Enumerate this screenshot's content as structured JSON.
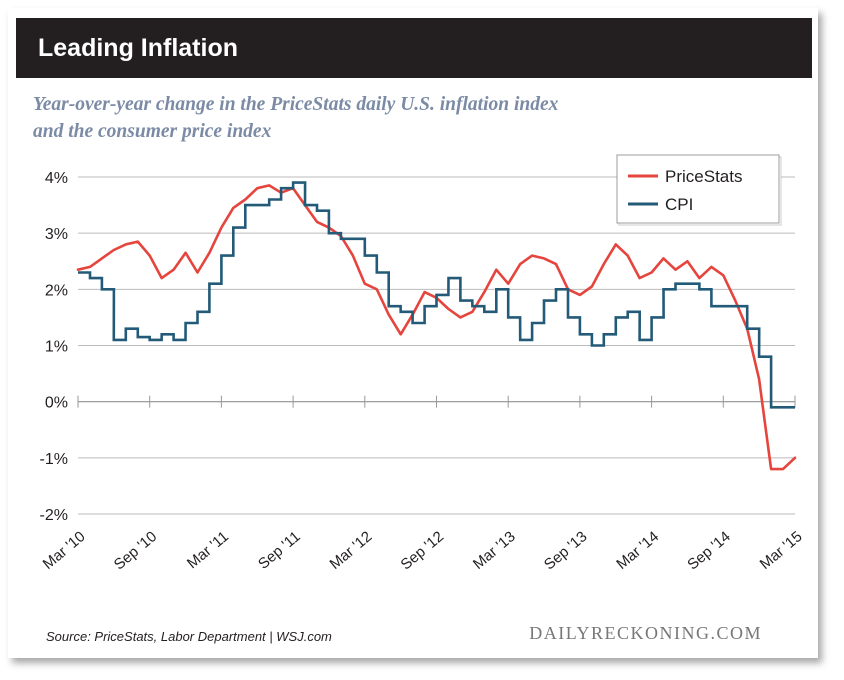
{
  "header": {
    "title": "Leading Inflation"
  },
  "subtitle": {
    "line1": "Year-over-year change in the PriceStats daily U.S. inflation index",
    "line2": "and the consumer price index"
  },
  "footer": {
    "source": "Source: PriceStats, Labor Department | WSJ.com",
    "brand": "DAILYRECKONING.COM"
  },
  "colors": {
    "header_bg": "#231f20",
    "pricestats": "#e5453d",
    "cpi": "#235a78",
    "grid": "#bbbbbb"
  },
  "chart_data": {
    "type": "line",
    "title": "Leading Inflation",
    "subtitle": "Year-over-year change in the PriceStats daily U.S. inflation index and the consumer price index",
    "ylim": [
      -2,
      4
    ],
    "yticks": [
      4,
      3,
      2,
      1,
      0,
      -1,
      -2
    ],
    "ytick_labels": [
      "4%",
      "3%",
      "2%",
      "1%",
      "0%",
      "-1%",
      "-2%"
    ],
    "xlim": [
      "2010-03",
      "2015-03"
    ],
    "xticks": [
      "Mar '10",
      "Sep '10",
      "Mar '11",
      "Sep '11",
      "Mar '12",
      "Sep '12",
      "Mar '13",
      "Sep '13",
      "Mar '14",
      "Sep '14",
      "Mar '15"
    ],
    "grid": "horizontal",
    "legend_position": "top-right",
    "series": [
      {
        "name": "PriceStats",
        "x": [
          "2010-03",
          "2010-04",
          "2010-05",
          "2010-06",
          "2010-07",
          "2010-08",
          "2010-09",
          "2010-10",
          "2010-11",
          "2010-12",
          "2011-01",
          "2011-02",
          "2011-03",
          "2011-04",
          "2011-05",
          "2011-06",
          "2011-07",
          "2011-08",
          "2011-09",
          "2011-10",
          "2011-11",
          "2011-12",
          "2012-01",
          "2012-02",
          "2012-03",
          "2012-04",
          "2012-05",
          "2012-06",
          "2012-07",
          "2012-08",
          "2012-09",
          "2012-10",
          "2012-11",
          "2012-12",
          "2013-01",
          "2013-02",
          "2013-03",
          "2013-04",
          "2013-05",
          "2013-06",
          "2013-07",
          "2013-08",
          "2013-09",
          "2013-10",
          "2013-11",
          "2013-12",
          "2014-01",
          "2014-02",
          "2014-03",
          "2014-04",
          "2014-05",
          "2014-06",
          "2014-07",
          "2014-08",
          "2014-09",
          "2014-10",
          "2014-11",
          "2014-12",
          "2015-01",
          "2015-02",
          "2015-03"
        ],
        "values": [
          2.35,
          2.4,
          2.55,
          2.7,
          2.8,
          2.85,
          2.6,
          2.2,
          2.35,
          2.65,
          2.3,
          2.65,
          3.1,
          3.45,
          3.6,
          3.8,
          3.85,
          3.72,
          3.8,
          3.5,
          3.2,
          3.1,
          2.95,
          2.6,
          2.1,
          2.0,
          1.55,
          1.2,
          1.55,
          1.95,
          1.85,
          1.65,
          1.5,
          1.6,
          1.95,
          2.35,
          2.1,
          2.45,
          2.6,
          2.55,
          2.45,
          2.0,
          1.9,
          2.05,
          2.45,
          2.8,
          2.6,
          2.2,
          2.3,
          2.55,
          2.35,
          2.5,
          2.2,
          2.4,
          2.25,
          1.8,
          1.3,
          0.4,
          -1.2,
          -1.2,
          -1.0
        ]
      },
      {
        "name": "CPI",
        "x": [
          "2010-03",
          "2010-04",
          "2010-05",
          "2010-06",
          "2010-07",
          "2010-08",
          "2010-09",
          "2010-10",
          "2010-11",
          "2010-12",
          "2011-01",
          "2011-02",
          "2011-03",
          "2011-04",
          "2011-05",
          "2011-06",
          "2011-07",
          "2011-08",
          "2011-09",
          "2011-10",
          "2011-11",
          "2011-12",
          "2012-01",
          "2012-02",
          "2012-03",
          "2012-04",
          "2012-05",
          "2012-06",
          "2012-07",
          "2012-08",
          "2012-09",
          "2012-10",
          "2012-11",
          "2012-12",
          "2013-01",
          "2013-02",
          "2013-03",
          "2013-04",
          "2013-05",
          "2013-06",
          "2013-07",
          "2013-08",
          "2013-09",
          "2013-10",
          "2013-11",
          "2013-12",
          "2014-01",
          "2014-02",
          "2014-03",
          "2014-04",
          "2014-05",
          "2014-06",
          "2014-07",
          "2014-08",
          "2014-09",
          "2014-10",
          "2014-11",
          "2014-12",
          "2015-01",
          "2015-02"
        ],
        "values": [
          2.3,
          2.2,
          2.0,
          1.1,
          1.3,
          1.15,
          1.1,
          1.2,
          1.1,
          1.4,
          1.6,
          2.1,
          2.6,
          3.1,
          3.5,
          3.5,
          3.6,
          3.8,
          3.9,
          3.5,
          3.4,
          3.0,
          2.9,
          2.9,
          2.6,
          2.3,
          1.7,
          1.6,
          1.4,
          1.7,
          1.9,
          2.2,
          1.8,
          1.7,
          1.6,
          2.0,
          1.5,
          1.1,
          1.4,
          1.8,
          2.0,
          1.5,
          1.2,
          1.0,
          1.2,
          1.5,
          1.6,
          1.1,
          1.5,
          2.0,
          2.1,
          2.1,
          2.0,
          1.7,
          1.7,
          1.7,
          1.3,
          0.8,
          -0.1,
          -0.1
        ]
      }
    ]
  }
}
